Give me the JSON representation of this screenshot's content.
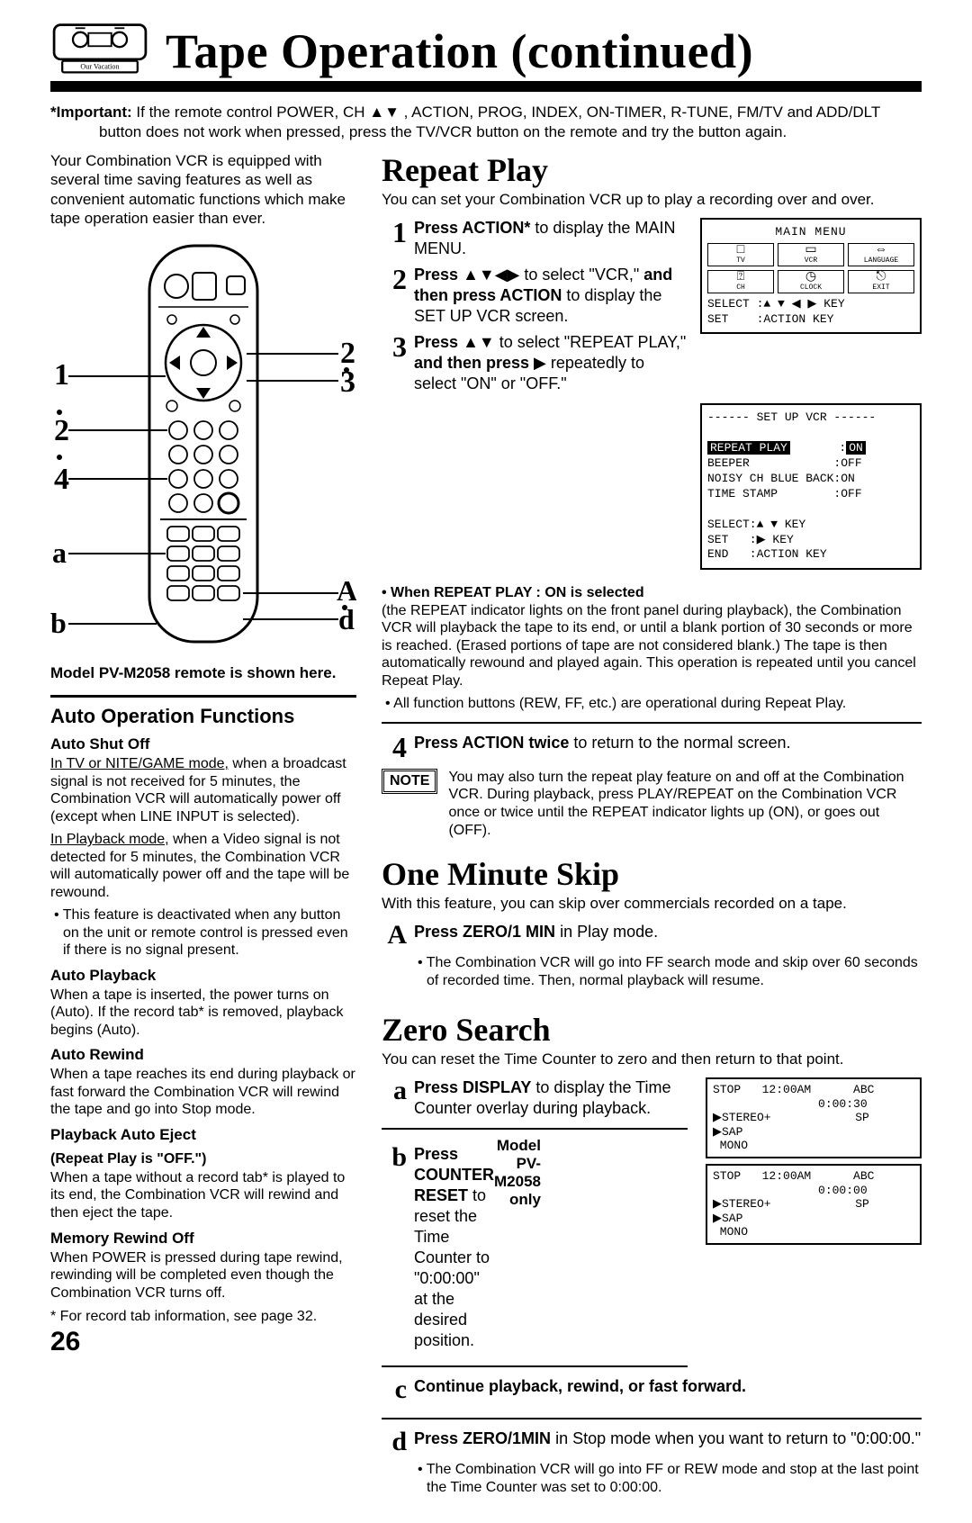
{
  "header": {
    "title": "Tape Operation (continued)",
    "vhs_caption": "Our Vacation"
  },
  "important": "*Important: If the remote control POWER, CH ▲▼ , ACTION, PROG, INDEX, ON-TIMER, R-TUNE, FM/TV and ADD/DLT button does not work when pressed, press the TV/VCR button on the remote and try the button again.",
  "left": {
    "intro": "Your Combination VCR is equipped with several time saving features as well as convenient automatic functions which make tape operation easier than ever.",
    "remote_caption": "Model PV-M2058 remote is shown here.",
    "remote_labels": {
      "left_top": "1",
      "left_mid": "2",
      "left_low": "4",
      "left_a": "a",
      "left_b": "b",
      "right_top": "2",
      "right_mid": "3",
      "right_A": "A",
      "right_d": "d"
    },
    "auto_h": "Auto Operation Functions",
    "sections": [
      {
        "h": "Auto Shut Off",
        "paras": [
          "In TV or NITE/GAME mode, when a broadcast signal is not received for 5 minutes, the Combination VCR will automatically power off (except when LINE INPUT is selected).",
          "In Playback mode, when a Video signal is not detected for 5 minutes, the Combination VCR will automatically power off and the tape will be rewound."
        ],
        "bullet": "This feature is deactivated when any button on the unit or remote control is pressed even if there is no signal present.",
        "underline_first": 24,
        "underline_second": 17
      },
      {
        "h": "Auto Playback",
        "paras": [
          "When a tape is inserted, the power turns on (Auto). If the record tab* is removed, playback begins (Auto)."
        ]
      },
      {
        "h": "Auto Rewind",
        "paras": [
          "When a tape reaches its end during playback or fast forward the Combination VCR will rewind the tape and go into Stop mode."
        ]
      },
      {
        "h": "Playback Auto Eject",
        "sub": "(Repeat Play is \"OFF.\")",
        "paras": [
          "When a tape without a record tab* is played to its end, the Combination VCR will rewind and then eject the tape."
        ]
      },
      {
        "h": "Memory Rewind Off",
        "paras": [
          "When POWER is pressed during tape rewind, rewinding will be completed even though the Combination VCR turns off."
        ]
      }
    ],
    "footnote": "* For record tab information, see page 32.",
    "page_num": "26"
  },
  "repeat": {
    "h": "Repeat Play",
    "lead": "You can set your Combination VCR up to play a recording over and over.",
    "steps": [
      {
        "n": "1",
        "html": "<b>Press ACTION*</b> to display the MAIN MENU."
      },
      {
        "n": "2",
        "html": "<b>Press</b>  <span class='tri'>▲▼◀▶</span>  to select \"VCR,\" <b>and then press ACTION</b> to display the SET UP VCR screen."
      },
      {
        "n": "3",
        "html": "<b>Press</b>  <span class='tri'>▲▼</span>  to select \"REPEAT PLAY,\" <b>and then press</b> <span class='tri'>▶</span> repeatedly to select \"ON\" or \"OFF.\""
      }
    ],
    "osd_main": {
      "title": "MAIN MENU",
      "cells": [
        [
          "□",
          "TV"
        ],
        [
          "▭",
          "VCR"
        ],
        [
          "⇔",
          "LANGUAGE"
        ],
        [
          "⍰",
          "CH"
        ],
        [
          "◷",
          "CLOCK"
        ],
        [
          "⎋",
          "EXIT"
        ]
      ],
      "foot": "SELECT :▲ ▼ ◀ ▶ KEY\nSET    :ACTION KEY"
    },
    "osd_setup": "------ SET UP VCR ------\n\nREPEAT PLAY       :ON\nBEEPER            :OFF\nNOISY CH BLUE BACK:ON\nTIME STAMP        :OFF\n\nSELECT:▲ ▼ KEY\nSET   :▶ KEY\nEND   :ACTION KEY",
    "on_selected_head": "• When REPEAT PLAY : ON is selected",
    "on_selected_body": "(the REPEAT indicator lights on the front panel during playback), the Combination VCR will playback the tape to its end, or until a blank portion of 30 seconds or more is reached. (Erased portions of tape are not considered blank.) The tape is then automatically rewound and played again. This operation is repeated until you cancel Repeat Play.",
    "on_selected_bullet": "All function buttons (REW, FF, etc.) are operational during Repeat Play.",
    "step4": {
      "n": "4",
      "html": "<b>Press ACTION twice</b> to return to the normal screen."
    },
    "note": "You may also turn the repeat play feature on and off at the Combination VCR. During playback, press PLAY/REPEAT on the Combination VCR once or twice until the REPEAT indicator lights up (ON), or goes out (OFF).",
    "note_label": "NOTE"
  },
  "skip": {
    "h": "One Minute Skip",
    "lead": "With this feature, you can skip over commercials recorded on a tape.",
    "step": {
      "n": "A",
      "html": "<b>Press ZERO/1 MIN</b> in Play mode."
    },
    "bullet": "The Combination VCR will go into FF search mode and skip over 60 seconds of recorded time. Then, normal playback will resume."
  },
  "zero": {
    "h": "Zero Search",
    "lead": "You can reset the Time Counter to zero and then return to that point.",
    "model_only": "Model PV-M2058 only",
    "steps": [
      {
        "n": "a",
        "html": "<b>Press DISPLAY</b> to display the Time Counter overlay during playback."
      },
      {
        "n": "b",
        "html": "<b>Press COUNTER RESET</b> to reset the Time Counter to \"0:00:00\" at the desired position."
      },
      {
        "n": "c",
        "html": "<b>Continue playback, rewind, or fast forward.</b>"
      },
      {
        "n": "d",
        "html": "<b>Press ZERO/1MIN</b> in Stop mode when you want to return to \"0:00:00.\""
      }
    ],
    "bullet": "The Combination VCR will go into FF or REW mode and stop at the last point the Time Counter was set to 0:00:00.",
    "osd1": "STOP   12:00AM      ABC\n               0:00:30\n▶STEREO+            SP\n▶SAP\n MONO",
    "osd2": "STOP   12:00AM      ABC\n               0:00:00\n▶STEREO+            SP\n▶SAP\n MONO"
  }
}
